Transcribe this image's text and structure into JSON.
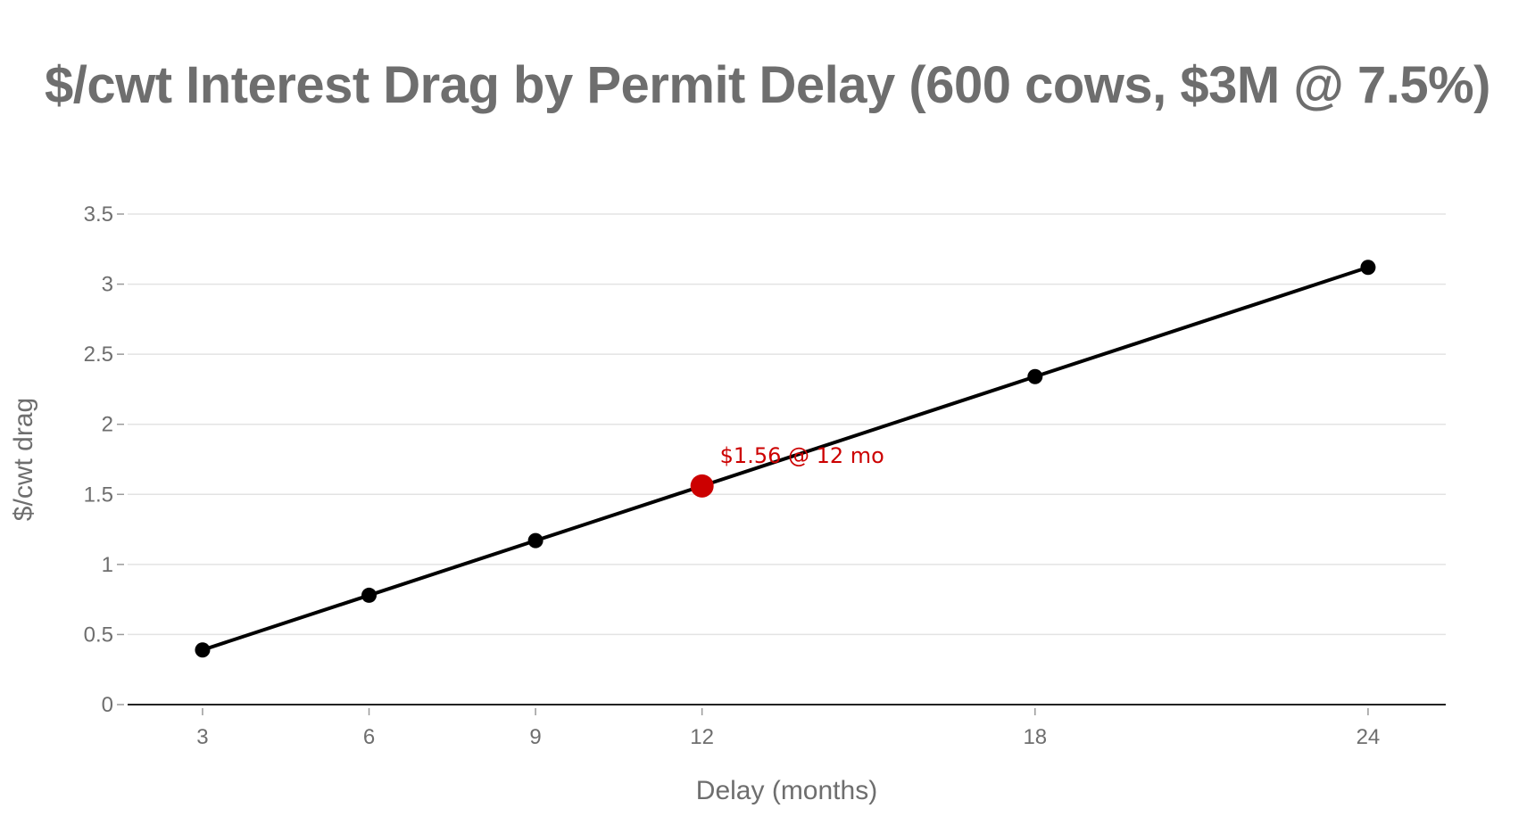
{
  "chart_data": {
    "type": "line",
    "title": "$/cwt Interest Drag by Permit Delay (600 cows, $3M @ 7.5%)",
    "xlabel": "Delay (months)",
    "ylabel": "$/cwt drag",
    "x": [
      3,
      6,
      9,
      12,
      18,
      24
    ],
    "series": [
      {
        "values": [
          0.39,
          0.78,
          1.17,
          1.56,
          2.34,
          3.12
        ]
      }
    ],
    "xticks": [
      3,
      6,
      9,
      12,
      18,
      24
    ],
    "yticks": [
      0,
      0.5,
      1,
      1.5,
      2,
      2.5,
      3,
      3.5
    ],
    "xlim": [
      1.65,
      25.4
    ],
    "ylim": [
      0,
      3.5
    ],
    "grid": "horizontal",
    "highlight": {
      "x": 12,
      "y": 1.56,
      "label": "$1.56 @ 12 mo"
    },
    "colors": {
      "line": "#000000",
      "highlight": "#cc0000",
      "grid": "#e3e3e3",
      "text": "#6e6e6e"
    }
  }
}
